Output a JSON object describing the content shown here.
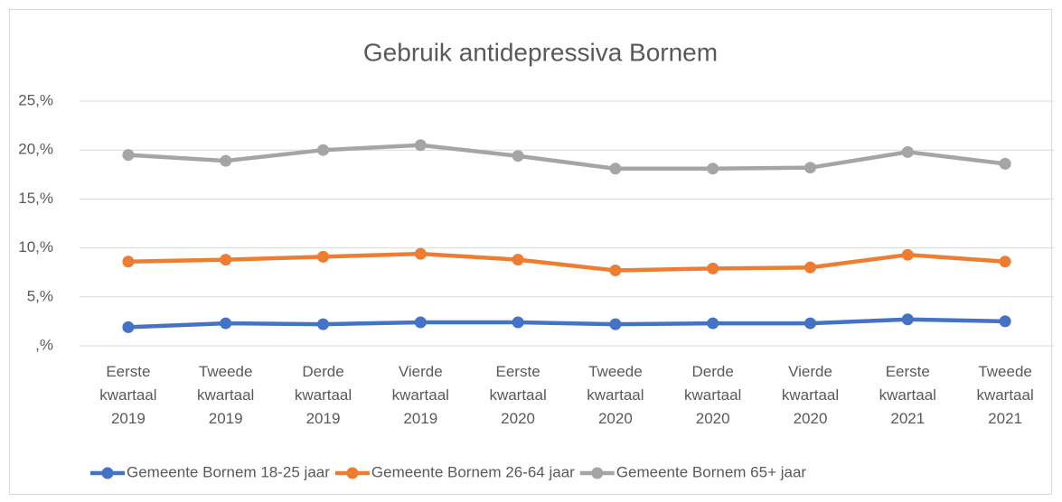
{
  "chart_data": {
    "type": "line",
    "title": "Gebruik antidepressiva Bornem",
    "categories": [
      "Eerste kwartaal 2019",
      "Tweede kwartaal 2019",
      "Derde kwartaal 2019",
      "Vierde kwartaal 2019",
      "Eerste kwartaal 2020",
      "Tweede kwartaal 2020",
      "Derde kwartaal 2020",
      "Vierde kwartaal 2020",
      "Eerste kwartaal 2021",
      "Tweede kwartaal 2021"
    ],
    "series": [
      {
        "name": "Gemeente Bornem 18-25 jaar",
        "color": "#4472c4",
        "values": [
          1.9,
          2.3,
          2.2,
          2.4,
          2.4,
          2.2,
          2.3,
          2.3,
          2.7,
          2.5
        ]
      },
      {
        "name": "Gemeente Bornem 26-64 jaar",
        "color": "#ed7d31",
        "values": [
          8.6,
          8.8,
          9.1,
          9.4,
          8.8,
          7.7,
          7.9,
          8.0,
          9.3,
          8.6
        ]
      },
      {
        "name": "Gemeente Bornem 65+ jaar",
        "color": "#a5a5a5",
        "values": [
          19.5,
          18.9,
          20.0,
          20.5,
          19.4,
          18.1,
          18.1,
          18.2,
          19.8,
          18.6
        ]
      }
    ],
    "ylim": [
      0,
      25
    ],
    "yticks": [
      {
        "value": 0,
        "label": ",%"
      },
      {
        "value": 5,
        "label": "5,%"
      },
      {
        "value": 10,
        "label": "10,%"
      },
      {
        "value": 15,
        "label": "15,%"
      },
      {
        "value": 20,
        "label": "20,%"
      },
      {
        "value": 25,
        "label": "25,%"
      }
    ],
    "grid": true,
    "legend": "bottom"
  }
}
